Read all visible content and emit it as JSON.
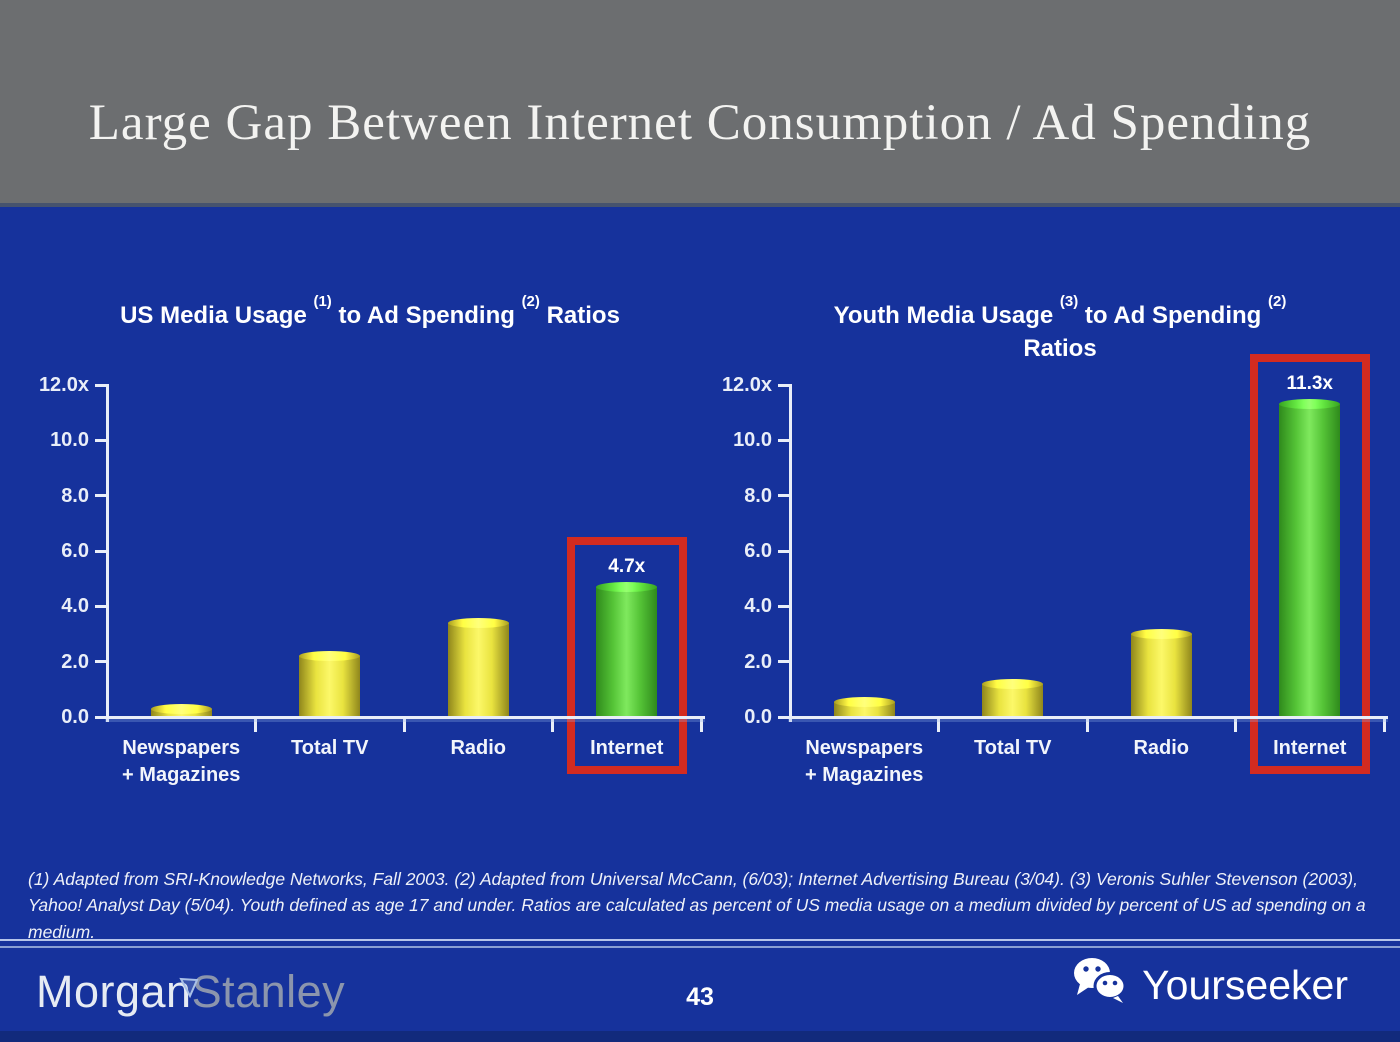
{
  "slide": {
    "title": "Large Gap Between Internet Consumption / Ad Spending",
    "footnote": "(1) Adapted from SRI-Knowledge Networks, Fall 2003. (2) Adapted from Universal McCann, (6/03); Internet Advertising Bureau (3/04). (3) Veronis Suhler Stevenson (2003), Yahoo! Analyst Day (5/04). Youth defined as age 17 and under. Ratios are calculated as percent of US media usage on a medium divided by percent of US ad spending on a medium.",
    "colors": {
      "background": "#16329c",
      "header_gray": "#6c6e70",
      "axis": "#e9eef8",
      "text": "#ffffff",
      "bar_yellow_center": "#fcf869",
      "bar_yellow_mid": "#e9e33f",
      "bar_yellow_edge": "#8f861c",
      "bar_green_center": "#7fe95e",
      "bar_green_mid": "#55c437",
      "bar_green_edge": "#2f8a1c",
      "highlight_red": "#d32b20"
    }
  },
  "footer": {
    "brand_morgan": "Morgan",
    "brand_stanley": "Stanley",
    "page_number": "43",
    "brand_right": "Yourseeker"
  },
  "chart_data": [
    {
      "type": "bar",
      "title_lines": [
        [
          {
            "t": "US Media Usage "
          },
          {
            "t": "(1)",
            "sup": true
          },
          {
            "t": " to Ad Spending "
          },
          {
            "t": "(2)",
            "sup": true
          },
          {
            "t": " Ratios"
          }
        ]
      ],
      "categories": [
        [
          "Newspapers",
          "+ Magazines"
        ],
        [
          "Total TV"
        ],
        [
          "Radio"
        ],
        [
          "Internet"
        ]
      ],
      "values": [
        0.3,
        2.2,
        3.4,
        4.7
      ],
      "bar_styles": [
        "yellow",
        "yellow",
        "yellow",
        "green"
      ],
      "highlight": {
        "index": 3,
        "label": "4.7x"
      },
      "ylim": [
        0,
        12
      ],
      "yticks": [
        {
          "value": 12,
          "label": "12.0x"
        },
        {
          "value": 10,
          "label": "10.0"
        },
        {
          "value": 8,
          "label": "8.0"
        },
        {
          "value": 6,
          "label": "6.0"
        },
        {
          "value": 4,
          "label": "4.0"
        },
        {
          "value": 2,
          "label": "2.0"
        },
        {
          "value": 0,
          "label": "0.0"
        }
      ],
      "xlabel": "",
      "ylabel": "",
      "grid": false,
      "legend": null
    },
    {
      "type": "bar",
      "title_lines": [
        [
          {
            "t": "Youth Media Usage "
          },
          {
            "t": "(3)",
            "sup": true
          },
          {
            "t": " to Ad Spending "
          },
          {
            "t": "(2)",
            "sup": true
          }
        ],
        [
          {
            "t": "Ratios"
          }
        ]
      ],
      "categories": [
        [
          "Newspapers",
          "+ Magazines"
        ],
        [
          "Total TV"
        ],
        [
          "Radio"
        ],
        [
          "Internet"
        ]
      ],
      "values": [
        0.55,
        1.2,
        3.0,
        11.3
      ],
      "bar_styles": [
        "yellow",
        "yellow",
        "yellow",
        "green"
      ],
      "highlight": {
        "index": 3,
        "label": "11.3x"
      },
      "ylim": [
        0,
        12
      ],
      "yticks": [
        {
          "value": 12,
          "label": "12.0x"
        },
        {
          "value": 10,
          "label": "10.0"
        },
        {
          "value": 8,
          "label": "8.0"
        },
        {
          "value": 6,
          "label": "6.0"
        },
        {
          "value": 4,
          "label": "4.0"
        },
        {
          "value": 2,
          "label": "2.0"
        },
        {
          "value": 0,
          "label": "0.0"
        }
      ],
      "xlabel": "",
      "ylabel": "",
      "grid": false,
      "legend": null
    }
  ]
}
